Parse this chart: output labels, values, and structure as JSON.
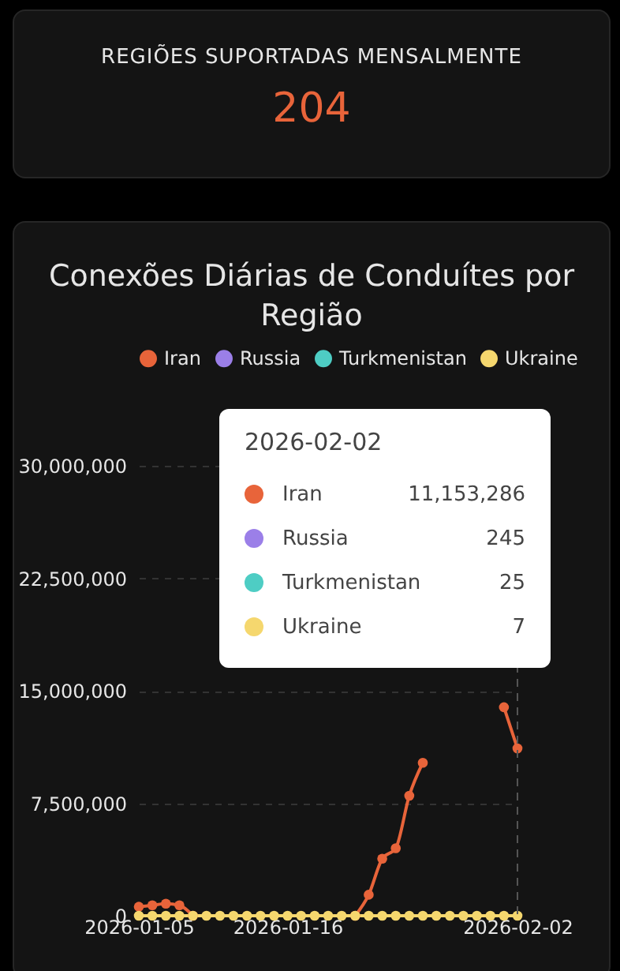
{
  "chart_data": [
    {
      "type": "other",
      "title": "REGIÕES SUPORTADAS MENSALMENTE",
      "annotations": [
        "204"
      ]
    },
    {
      "type": "line",
      "title": "Conexões Diárias de Conduítes por Região",
      "x": [
        "2026-01-05",
        "2026-01-06",
        "2026-01-07",
        "2026-01-08",
        "2026-01-09",
        "2026-01-10",
        "2026-01-11",
        "2026-01-12",
        "2026-01-13",
        "2026-01-14",
        "2026-01-15",
        "2026-01-16",
        "2026-01-17",
        "2026-01-18",
        "2026-01-19",
        "2026-01-20",
        "2026-01-21",
        "2026-01-22",
        "2026-01-23",
        "2026-01-24",
        "2026-01-25",
        "2026-01-26",
        "2026-01-27",
        "2026-01-28",
        "2026-01-29",
        "2026-01-30",
        "2026-01-31",
        "2026-02-01",
        "2026-02-02"
      ],
      "series": [
        {
          "name": "Iran",
          "color": "#e8643a",
          "values": [
            600000,
            700000,
            800000,
            700000,
            0,
            null,
            null,
            null,
            null,
            null,
            null,
            null,
            null,
            null,
            null,
            null,
            0,
            1400000,
            3800000,
            4500000,
            8000000,
            10200000,
            null,
            null,
            null,
            null,
            null,
            13900000,
            11153286
          ]
        },
        {
          "name": "Russia",
          "color": "#9b7fe8",
          "values": [
            null,
            null,
            null,
            null,
            null,
            null,
            null,
            null,
            null,
            null,
            null,
            null,
            null,
            null,
            null,
            null,
            null,
            null,
            null,
            null,
            null,
            null,
            null,
            null,
            null,
            null,
            null,
            null,
            null
          ]
        },
        {
          "name": "Turkmenistan",
          "color": "#4ecdc4",
          "values": [
            null,
            null,
            null,
            null,
            null,
            null,
            null,
            null,
            null,
            null,
            null,
            null,
            null,
            null,
            null,
            null,
            null,
            null,
            null,
            null,
            null,
            null,
            null,
            null,
            null,
            null,
            null,
            null,
            null
          ]
        },
        {
          "name": "Ukraine",
          "color": "#f5d76e",
          "values": [
            0,
            0,
            0,
            0,
            0,
            0,
            0,
            0,
            0,
            0,
            0,
            0,
            0,
            0,
            0,
            0,
            0,
            0,
            0,
            0,
            0,
            0,
            0,
            0,
            0,
            0,
            0,
            0,
            7
          ]
        }
      ],
      "xlim": [
        "2026-01-05",
        "2026-02-02"
      ],
      "xticks": [
        "2026-01-05",
        "2026-01-16",
        "2026-02-02"
      ],
      "ylim": [
        0,
        30000000
      ],
      "yticks": [
        0,
        {
          "value": 7500000,
          "label": "7,500,000"
        },
        {
          "value": 15000000,
          "label": "15,000,000"
        },
        {
          "value": 22500000,
          "label": "22,500,000"
        },
        {
          "value": 30000000,
          "label": "30,000,000"
        }
      ],
      "grid": "y",
      "legend": "top",
      "marker": "circle",
      "line_style": "solid",
      "ref_lines": [
        {
          "axis": "x",
          "value": "2026-02-02",
          "color": "#555555",
          "line_style": "dashed"
        }
      ],
      "annotations": [
        "2026-02-02",
        "Iran",
        "11,153,286",
        "Russia",
        "245",
        "Turkmenistan",
        "25",
        "Ukraine",
        "7"
      ]
    }
  ]
}
